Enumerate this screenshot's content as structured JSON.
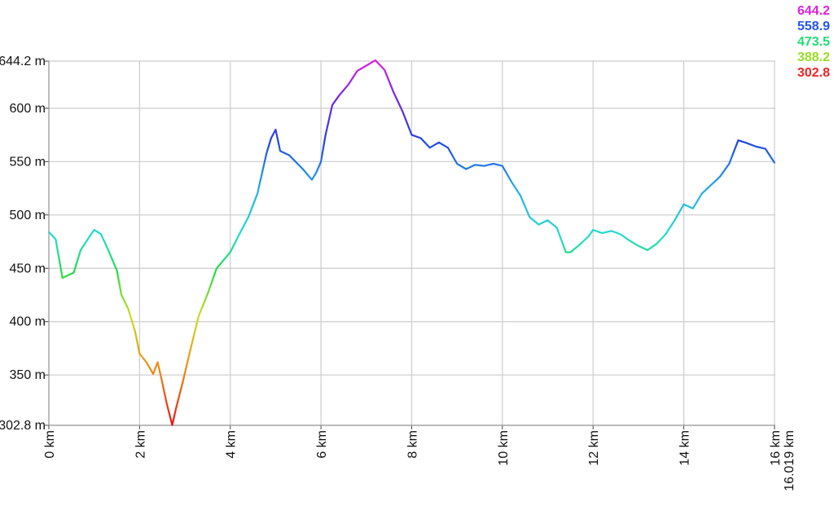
{
  "chart_data": {
    "type": "line",
    "title": "",
    "xlabel": "",
    "ylabel": "",
    "xlim": [
      0,
      16.019
    ],
    "ylim": [
      302.8,
      644.2
    ],
    "grid": true,
    "x_ticks": [
      {
        "value": 0,
        "label": "0 km"
      },
      {
        "value": 2,
        "label": "2 km"
      },
      {
        "value": 4,
        "label": "4 km"
      },
      {
        "value": 6,
        "label": "6 km"
      },
      {
        "value": 8,
        "label": "8 km"
      },
      {
        "value": 10,
        "label": "10 km"
      },
      {
        "value": 12,
        "label": "12 km"
      },
      {
        "value": 14,
        "label": "14 km"
      },
      {
        "value": 16,
        "label": "16 km"
      }
    ],
    "x_end_label": {
      "value": 16.019,
      "label": "16.019 km"
    },
    "y_ticks": [
      {
        "value": 302.8,
        "label": "302.8 m"
      },
      {
        "value": 350,
        "label": "350 m"
      },
      {
        "value": 400,
        "label": "400 m"
      },
      {
        "value": 450,
        "label": "450 m"
      },
      {
        "value": 500,
        "label": "500 m"
      },
      {
        "value": 550,
        "label": "550 m"
      },
      {
        "value": 600,
        "label": "600 m"
      },
      {
        "value": 644.2,
        "label": "644.2 m"
      }
    ],
    "color_legend": [
      {
        "label": "644.2",
        "color": "#dd22dd"
      },
      {
        "label": "558.9",
        "color": "#2255ee"
      },
      {
        "label": "473.5",
        "color": "#22dd77"
      },
      {
        "label": "388.2",
        "color": "#99dd22"
      },
      {
        "label": "302.8",
        "color": "#ee2222"
      }
    ],
    "series": [
      {
        "x": [
          0,
          0.15,
          0.3,
          0.55,
          0.7,
          0.9,
          1.0,
          1.15,
          1.3,
          1.5,
          1.6,
          1.75,
          1.9,
          2.0,
          2.15,
          2.3,
          2.4,
          2.5,
          2.6,
          2.72,
          2.8,
          2.95,
          3.1,
          3.3,
          3.5,
          3.7,
          4.0,
          4.2,
          4.4,
          4.6,
          4.8,
          4.9,
          5.0,
          5.1,
          5.3,
          5.6,
          5.8,
          5.9,
          6.0,
          6.1,
          6.25,
          6.4,
          6.6,
          6.8,
          7.0,
          7.2,
          7.4,
          7.6,
          7.8,
          8.0,
          8.2,
          8.4,
          8.6,
          8.8,
          9.0,
          9.2,
          9.4,
          9.6,
          9.8,
          10.0,
          10.2,
          10.4,
          10.6,
          10.8,
          11.0,
          11.2,
          11.4,
          11.5,
          11.7,
          11.9,
          12.0,
          12.2,
          12.4,
          12.6,
          12.8,
          13.0,
          13.2,
          13.4,
          13.6,
          13.8,
          14.0,
          14.2,
          14.4,
          14.6,
          14.8,
          15.0,
          15.2,
          15.35,
          15.6,
          15.8,
          16.0
        ],
        "y": [
          484,
          477,
          441,
          446,
          467,
          480,
          486,
          482,
          468,
          448,
          425,
          412,
          391,
          370,
          362,
          351,
          362,
          343,
          323,
          303,
          318,
          343,
          370,
          405,
          426,
          450,
          465,
          482,
          498,
          520,
          558,
          572,
          580,
          560,
          556,
          543,
          533,
          540,
          550,
          575,
          603,
          612,
          622,
          635,
          640,
          645,
          636,
          615,
          597,
          575,
          572,
          563,
          568,
          563,
          548,
          543,
          547,
          546,
          548,
          546,
          531,
          518,
          498,
          491,
          495,
          488,
          465,
          465,
          472,
          480,
          486,
          483,
          485,
          482,
          476,
          471,
          467,
          473,
          482,
          495,
          510,
          506,
          520,
          528,
          536,
          548,
          570,
          568,
          564,
          562,
          549
        ]
      }
    ]
  }
}
